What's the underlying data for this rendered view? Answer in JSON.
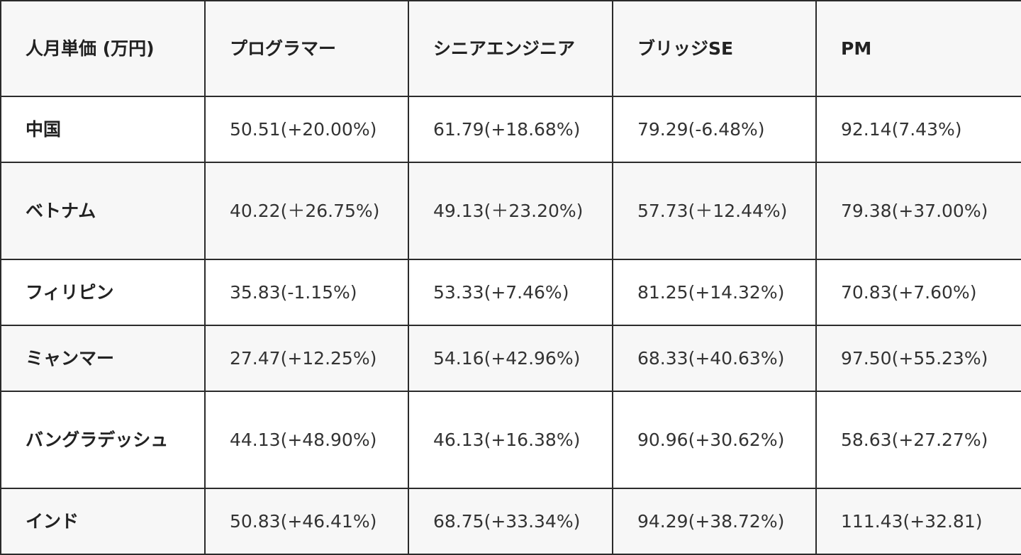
{
  "table": {
    "headers": [
      "人月単価 (万円)",
      "プログラマー",
      "シニアエンジニア",
      "ブリッジSE",
      "PM"
    ],
    "rows": [
      {
        "country": "中国",
        "cells": [
          "50.51(+20.00%)",
          "61.79(+18.68%)",
          "79.29(-6.48%)",
          "92.14(7.43%)"
        ]
      },
      {
        "country": "ベトナム",
        "cells": [
          "40.22(＋26.75%)",
          "49.13(＋23.20%)",
          "57.73(＋12.44%)",
          "79.38(+37.00%)"
        ]
      },
      {
        "country": "フィリピン",
        "cells": [
          "35.83(-1.15%)",
          "53.33(+7.46%)",
          "81.25(+14.32%)",
          "70.83(+7.60%)"
        ]
      },
      {
        "country": "ミャンマー",
        "cells": [
          "27.47(+12.25%)",
          "54.16(+42.96%)",
          "68.33(+40.63%)",
          "97.50(+55.23%)"
        ]
      },
      {
        "country": "バングラデッシュ",
        "cells": [
          "44.13(+48.90%)",
          "46.13(+16.38%)",
          "90.96(+30.62%)",
          "58.63(+27.27%)"
        ]
      },
      {
        "country": "インド",
        "cells": [
          "50.83(+46.41%)",
          "68.75(+33.34%)",
          "94.29(+38.72%)",
          "111.43(+32.81)"
        ]
      }
    ]
  }
}
